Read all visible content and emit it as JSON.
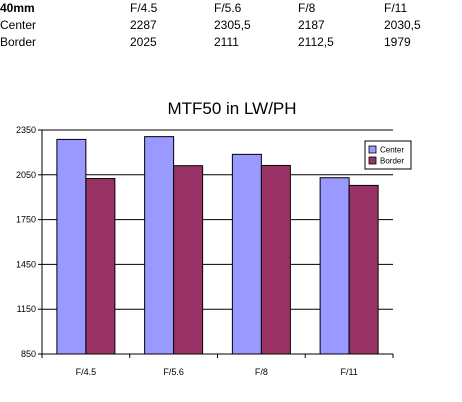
{
  "table": {
    "header": [
      "40mm",
      "F/4.5",
      "F/5.6",
      "F/8",
      "F/11"
    ],
    "rows": [
      [
        "Center",
        "2287",
        "2305,5",
        "2187",
        "2030,5"
      ],
      [
        "Border",
        "2025",
        "2111",
        "2112,5",
        "1979"
      ]
    ]
  },
  "chart_data": {
    "type": "bar",
    "title": "MTF50 in LW/PH",
    "xlabel": "",
    "ylabel": "",
    "categories": [
      "F/4.5",
      "F/5.6",
      "F/8",
      "F/11"
    ],
    "series": [
      {
        "name": "Center",
        "values": [
          2287,
          2305.5,
          2187,
          2030.5
        ],
        "color": "#9999ff"
      },
      {
        "name": "Border",
        "values": [
          2025,
          2111,
          2112.5,
          1979
        ],
        "color": "#993366"
      }
    ],
    "ylim": [
      850,
      2350
    ],
    "yticks": [
      850,
      1150,
      1450,
      1750,
      2050,
      2350
    ],
    "ytick_labels": [
      "850",
      "1150",
      "1450",
      "1750",
      "2050",
      "2350"
    ],
    "grid": true,
    "legend_position": "top-right"
  }
}
